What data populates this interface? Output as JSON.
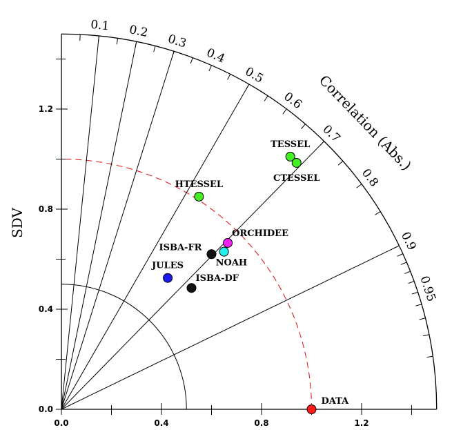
{
  "chart_data": {
    "type": "scatter",
    "diagram": "taylor",
    "title": "",
    "xlabel": "",
    "ylabel": "SDV",
    "correlation_label": "Correlation (Abs.)",
    "xlim": [
      0,
      1.5
    ],
    "ylim": [
      0,
      1.5
    ],
    "sd_ticks": [
      0.0,
      0.4,
      0.8,
      1.2
    ],
    "sd_tick_labels": [
      "0.0",
      "0.4",
      "0.8",
      "1.2"
    ],
    "correlation_ticks": [
      0.1,
      0.2,
      0.3,
      0.4,
      0.5,
      0.6,
      0.7,
      0.8,
      0.9,
      0.95
    ],
    "correlation_tick_labels": [
      "0.1",
      "0.2",
      "0.3",
      "0.4",
      "0.5",
      "0.6",
      "0.7",
      "0.8",
      "0.9",
      "0.95"
    ],
    "correlation_rays": [
      0.1,
      0.2,
      0.3,
      0.5,
      0.7,
      0.9
    ],
    "reference_sd": 1.0,
    "reference_color": "#e02020",
    "inner_arc_sd": 0.5,
    "points": [
      {
        "name": "TESSEL",
        "x": 0.915,
        "y": 1.01,
        "color": "#44ee22",
        "label_pos": "above"
      },
      {
        "name": "CTESSEL",
        "x": 0.94,
        "y": 0.985,
        "color": "#44ee22",
        "label_pos": "below"
      },
      {
        "name": "HTESSEL",
        "x": 0.55,
        "y": 0.85,
        "color": "#44ee22",
        "label_pos": "above"
      },
      {
        "name": "ORCHIDEE",
        "x": 0.665,
        "y": 0.665,
        "color": "#ee22ee",
        "label_pos": "above-right"
      },
      {
        "name": "NOAH",
        "x": 0.65,
        "y": 0.63,
        "color": "#22eeee",
        "label_pos": "below-right"
      },
      {
        "name": "ISBA-FR",
        "x": 0.6,
        "y": 0.62,
        "color": "#111111",
        "label_pos": "left"
      },
      {
        "name": "JULES",
        "x": 0.425,
        "y": 0.525,
        "color": "#1a1aee",
        "label_pos": "above"
      },
      {
        "name": "ISBA-DF",
        "x": 0.52,
        "y": 0.485,
        "color": "#111111",
        "label_pos": "above-right"
      },
      {
        "name": "DATA",
        "x": 1.0,
        "y": 0.0,
        "color": "#ff1a1a",
        "label_pos": "right"
      }
    ]
  }
}
